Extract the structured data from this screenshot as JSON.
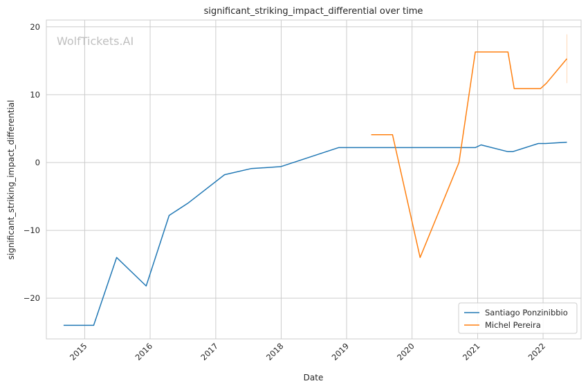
{
  "chart_data": {
    "type": "line",
    "title": "significant_striking_impact_differential over time",
    "xlabel": "Date",
    "ylabel": "significant_striking_impact_differential",
    "watermark": "WolfTickets.AI",
    "x_ticks": [
      "2015",
      "2016",
      "2017",
      "2018",
      "2019",
      "2020",
      "2021",
      "2022"
    ],
    "y_ticks": [
      -20,
      -10,
      0,
      10,
      20
    ],
    "xlim": [
      "2014-06-01",
      "2022-08-01"
    ],
    "ylim": [
      -26,
      21
    ],
    "grid": true,
    "legend_position": "lower-right",
    "series": [
      {
        "name": "Santiago Ponzinibbio",
        "color": "#1f77b4",
        "points": [
          [
            "2014-09-05",
            -24.0
          ],
          [
            "2015-02-20",
            -24.0
          ],
          [
            "2015-06-28",
            -14.0
          ],
          [
            "2015-12-10",
            -18.2
          ],
          [
            "2016-04-16",
            -7.8
          ],
          [
            "2016-07-30",
            -6.0
          ],
          [
            "2017-02-19",
            -1.8
          ],
          [
            "2017-07-16",
            -0.9
          ],
          [
            "2017-12-30",
            -0.6
          ],
          [
            "2018-11-17",
            2.2
          ],
          [
            "2019-06-01",
            2.2
          ],
          [
            "2020-06-01",
            2.2
          ],
          [
            "2020-12-19",
            2.2
          ],
          [
            "2021-01-20",
            2.6
          ],
          [
            "2021-06-19",
            1.6
          ],
          [
            "2021-07-15",
            1.6
          ],
          [
            "2021-12-05",
            2.8
          ],
          [
            "2022-01-15",
            2.8
          ],
          [
            "2022-05-14",
            3.0
          ]
        ]
      },
      {
        "name": "Michel Pereira",
        "color": "#ff7f0e",
        "points": [
          [
            "2019-05-18",
            4.1
          ],
          [
            "2019-09-14",
            4.1
          ],
          [
            "2020-02-15",
            -14.0
          ],
          [
            "2020-09-19",
            0.0
          ],
          [
            "2020-12-19",
            16.3
          ],
          [
            "2021-06-19",
            16.3
          ],
          [
            "2021-07-24",
            10.9
          ],
          [
            "2021-12-18",
            10.9
          ],
          [
            "2022-01-20",
            11.7
          ],
          [
            "2022-05-14",
            15.3
          ]
        ],
        "error_band": {
          "x": "2022-05-14",
          "low": 11.7,
          "high": 18.9
        }
      }
    ]
  }
}
